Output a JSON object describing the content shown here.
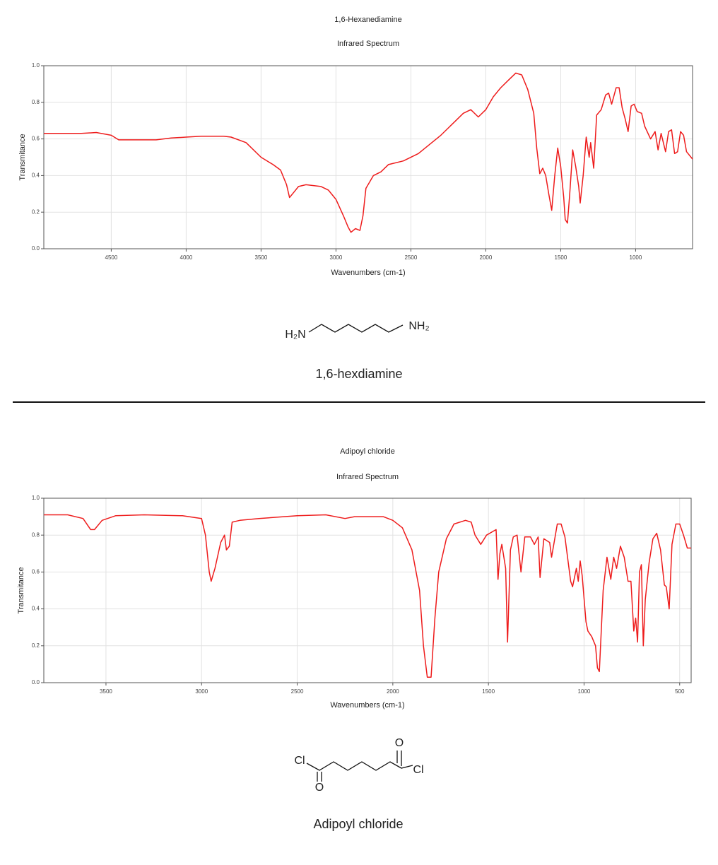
{
  "chart_data": [
    {
      "type": "line",
      "title": "1,6-Hexanediamine",
      "subtitle": "Infrared Spectrum",
      "x_label": "Wavenumbers (cm-1)",
      "y_label": "Transmitance",
      "color": "#ee1c1c",
      "grid": true,
      "xlim": [
        4950,
        620
      ],
      "ylim": [
        0,
        1
      ],
      "xticks": [
        4500,
        4000,
        3500,
        3000,
        2500,
        2000,
        1500,
        1000
      ],
      "yticks": [
        {
          "value": 0,
          "label": "0.0"
        },
        0.2,
        0.4,
        0.6,
        0.8,
        {
          "value": 1,
          "label": "1.0"
        }
      ],
      "x": [
        4950,
        4700,
        4600,
        4500,
        4450,
        4300,
        4200,
        4100,
        4000,
        3900,
        3750,
        3700,
        3600,
        3500,
        3420,
        3370,
        3330,
        3310,
        3280,
        3250,
        3200,
        3100,
        3050,
        3000,
        2950,
        2920,
        2900,
        2870,
        2840,
        2820,
        2800,
        2750,
        2700,
        2650,
        2550,
        2450,
        2300,
        2200,
        2150,
        2100,
        2050,
        2000,
        1950,
        1900,
        1850,
        1800,
        1760,
        1720,
        1680,
        1660,
        1640,
        1620,
        1600,
        1580,
        1560,
        1540,
        1520,
        1500,
        1480,
        1470,
        1455,
        1440,
        1420,
        1400,
        1380,
        1370,
        1350,
        1330,
        1310,
        1300,
        1280,
        1260,
        1230,
        1200,
        1180,
        1160,
        1130,
        1110,
        1090,
        1070,
        1050,
        1030,
        1010,
        990,
        960,
        940,
        900,
        870,
        850,
        830,
        800,
        780,
        760,
        740,
        720,
        700,
        680,
        660,
        620
      ],
      "values": [
        0.63,
        0.63,
        0.635,
        0.62,
        0.595,
        0.595,
        0.595,
        0.605,
        0.61,
        0.615,
        0.615,
        0.61,
        0.58,
        0.5,
        0.46,
        0.43,
        0.35,
        0.28,
        0.31,
        0.34,
        0.35,
        0.34,
        0.32,
        0.27,
        0.18,
        0.12,
        0.09,
        0.11,
        0.1,
        0.18,
        0.33,
        0.4,
        0.42,
        0.46,
        0.48,
        0.52,
        0.62,
        0.7,
        0.74,
        0.76,
        0.72,
        0.76,
        0.83,
        0.88,
        0.92,
        0.96,
        0.95,
        0.87,
        0.74,
        0.55,
        0.41,
        0.44,
        0.4,
        0.3,
        0.21,
        0.4,
        0.55,
        0.45,
        0.28,
        0.16,
        0.14,
        0.3,
        0.54,
        0.45,
        0.34,
        0.25,
        0.4,
        0.61,
        0.5,
        0.58,
        0.44,
        0.73,
        0.76,
        0.84,
        0.85,
        0.79,
        0.88,
        0.88,
        0.77,
        0.71,
        0.64,
        0.78,
        0.79,
        0.75,
        0.74,
        0.67,
        0.6,
        0.64,
        0.54,
        0.63,
        0.53,
        0.64,
        0.65,
        0.52,
        0.53,
        0.64,
        0.62,
        0.53,
        0.49
      ]
    },
    {
      "type": "line",
      "title": "Adipoyl chloride",
      "subtitle": "Infrared Spectrum",
      "x_label": "Wavenumbers (cm-1)",
      "y_label": "Transmitance",
      "color": "#ee1c1c",
      "grid": true,
      "xlim": [
        3825,
        440
      ],
      "ylim": [
        0,
        1
      ],
      "xticks": [
        3500,
        3000,
        2500,
        2000,
        1500,
        1000,
        500
      ],
      "yticks": [
        {
          "value": 0,
          "label": "0.0"
        },
        0.2,
        0.4,
        0.6,
        0.8,
        {
          "value": 1,
          "label": "1.0"
        }
      ],
      "x": [
        3825,
        3700,
        3620,
        3580,
        3560,
        3520,
        3450,
        3300,
        3100,
        3000,
        2980,
        2960,
        2950,
        2930,
        2900,
        2880,
        2870,
        2855,
        2840,
        2800,
        2700,
        2500,
        2350,
        2250,
        2200,
        2050,
        2000,
        1950,
        1900,
        1860,
        1840,
        1820,
        1800,
        1780,
        1760,
        1720,
        1680,
        1620,
        1590,
        1570,
        1540,
        1510,
        1460,
        1450,
        1440,
        1430,
        1410,
        1400,
        1385,
        1370,
        1350,
        1330,
        1310,
        1280,
        1260,
        1240,
        1230,
        1210,
        1180,
        1170,
        1140,
        1120,
        1100,
        1070,
        1060,
        1040,
        1030,
        1020,
        1010,
        990,
        980,
        960,
        940,
        930,
        920,
        900,
        880,
        860,
        845,
        830,
        810,
        790,
        770,
        755,
        740,
        730,
        720,
        710,
        700,
        690,
        680,
        660,
        640,
        620,
        600,
        580,
        570,
        555,
        540,
        520,
        500,
        480,
        460,
        440
      ],
      "values": [
        0.91,
        0.91,
        0.89,
        0.83,
        0.83,
        0.88,
        0.905,
        0.91,
        0.905,
        0.89,
        0.8,
        0.6,
        0.55,
        0.62,
        0.76,
        0.8,
        0.72,
        0.74,
        0.87,
        0.88,
        0.89,
        0.905,
        0.91,
        0.89,
        0.9,
        0.9,
        0.88,
        0.84,
        0.72,
        0.5,
        0.2,
        0.03,
        0.03,
        0.35,
        0.6,
        0.78,
        0.86,
        0.88,
        0.87,
        0.8,
        0.75,
        0.8,
        0.83,
        0.56,
        0.7,
        0.75,
        0.62,
        0.22,
        0.72,
        0.79,
        0.8,
        0.6,
        0.79,
        0.79,
        0.75,
        0.79,
        0.57,
        0.78,
        0.76,
        0.68,
        0.86,
        0.86,
        0.79,
        0.55,
        0.52,
        0.62,
        0.55,
        0.66,
        0.58,
        0.33,
        0.28,
        0.25,
        0.2,
        0.08,
        0.06,
        0.5,
        0.68,
        0.56,
        0.68,
        0.62,
        0.74,
        0.68,
        0.55,
        0.55,
        0.28,
        0.35,
        0.22,
        0.6,
        0.64,
        0.2,
        0.45,
        0.65,
        0.78,
        0.81,
        0.72,
        0.53,
        0.52,
        0.4,
        0.75,
        0.86,
        0.86,
        0.8,
        0.73,
        0.73
      ]
    }
  ],
  "structures": [
    {
      "name": "1,6-hexdiamine",
      "atoms": [
        "H₂N",
        "NH₂"
      ]
    },
    {
      "name": "Adipoyl chloride",
      "atoms": [
        "Cl",
        "O",
        "O",
        "Cl"
      ]
    }
  ]
}
